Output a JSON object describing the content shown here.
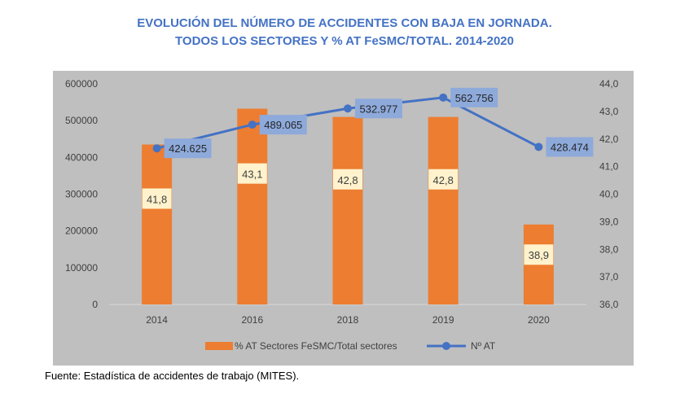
{
  "title_line1": "EVOLUCIÓN DEL NÚMERO DE ACCIDENTES CON BAJA EN JORNADA.",
  "title_line2": "TODOS LOS SECTORES Y % AT FeSMC/TOTAL. 2014-2020",
  "source": "Fuente: Estadística de accidentes de trabajo (MITES).",
  "chart_data": {
    "type": "bar",
    "categories": [
      "2014",
      "2016",
      "2018",
      "2019",
      "2020"
    ],
    "series": [
      {
        "name": "% AT Sectores FeSMC/Total sectores",
        "type": "bar",
        "axis": "right",
        "values": [
          41.8,
          43.1,
          42.8,
          42.8,
          38.9
        ],
        "labels": [
          "41,8",
          "43,1",
          "42,8",
          "42,8",
          "38,9"
        ],
        "color": "#ed7d31"
      },
      {
        "name": "Nº AT",
        "type": "line",
        "axis": "left",
        "values": [
          424625,
          489065,
          532977,
          562756,
          428474
        ],
        "labels": [
          "424.625",
          "489.065",
          "532.977",
          "562.756",
          "428.474"
        ],
        "color": "#4472c4"
      }
    ],
    "y_left": {
      "min": 0,
      "max": 600000,
      "ticks": [
        "0",
        "100000",
        "200000",
        "300000",
        "400000",
        "500000",
        "600000"
      ]
    },
    "y_right": {
      "min": 36,
      "max": 44,
      "ticks": [
        "36,0",
        "37,0",
        "38,0",
        "39,0",
        "40,0",
        "41,0",
        "42,0",
        "43,0",
        "44,0"
      ]
    },
    "legend_position": "bottom",
    "grid": false,
    "background": "#bfbfbf",
    "bar_label_bg": "#fff2cc",
    "line_label_bg": "#8eaadb"
  }
}
